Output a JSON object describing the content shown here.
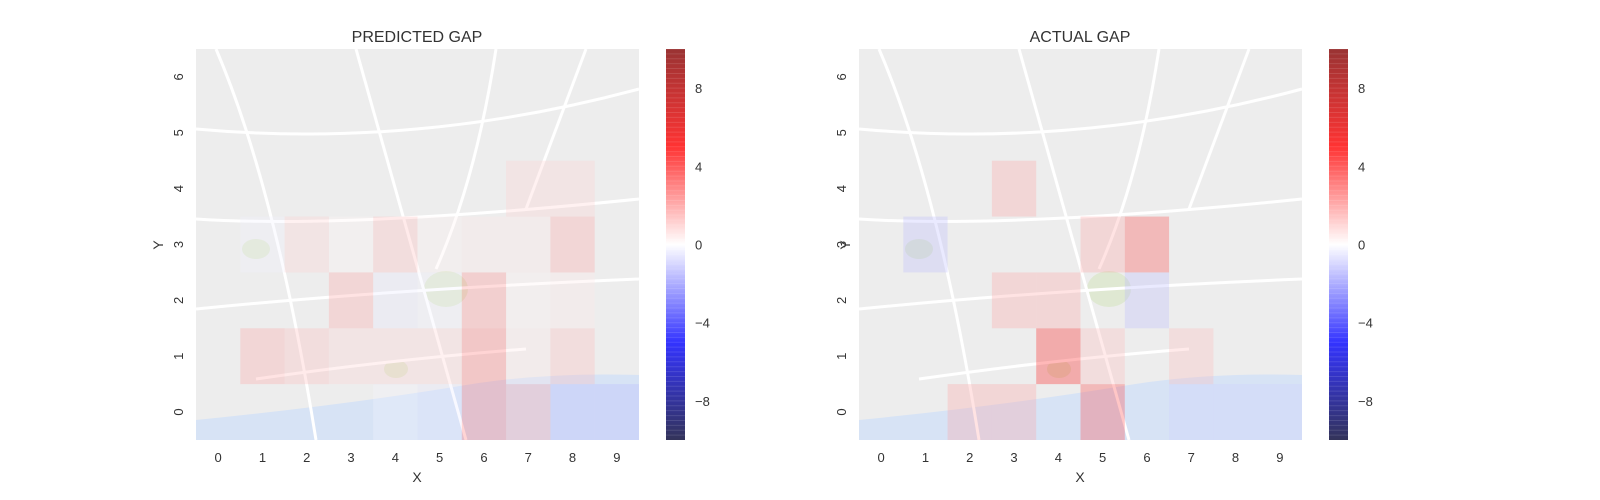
{
  "chart_data": [
    {
      "type": "heatmap",
      "title": "PREDICTED GAP",
      "xlabel": "X",
      "ylabel": "Y",
      "x": [
        0,
        1,
        2,
        3,
        4,
        5,
        6,
        7,
        8,
        9
      ],
      "y": [
        0,
        1,
        2,
        3,
        4,
        5,
        6
      ],
      "x_tick_labels": [
        "0",
        "1",
        "2",
        "3",
        "4",
        "5",
        "6",
        "7",
        "8",
        "9"
      ],
      "y_tick_labels": [
        "0",
        "1",
        "2",
        "3",
        "4",
        "5",
        "6"
      ],
      "values": [
        [
          0,
          0,
          0,
          0,
          -0.2,
          -0.5,
          3,
          2,
          -1.5,
          -1.5
        ],
        [
          0,
          2,
          1.5,
          1,
          1,
          1,
          3,
          0.5,
          1.5,
          0
        ],
        [
          0,
          0,
          0,
          2,
          -0.5,
          -0.3,
          2.5,
          0.3,
          0.5,
          0
        ],
        [
          0,
          -0.3,
          1,
          0.2,
          1.5,
          0.3,
          0.5,
          0.5,
          2,
          0
        ],
        [
          0,
          0,
          0,
          0,
          0,
          0,
          0,
          1,
          1,
          0
        ],
        [
          0,
          0,
          0,
          0,
          0,
          0,
          0,
          0,
          0,
          0
        ],
        [
          0,
          0,
          0,
          0,
          0,
          0,
          0,
          0,
          0,
          0
        ]
      ],
      "colorbar": {
        "cmap": "seismic",
        "vmin": -10,
        "vmax": 10,
        "ticks": [
          -8,
          -4,
          0,
          4,
          8
        ],
        "tick_labels": [
          "−8",
          "−4",
          "0",
          "4",
          "8"
        ]
      },
      "background": "street-map"
    },
    {
      "type": "heatmap",
      "title": "ACTUAL GAP",
      "xlabel": "X",
      "ylabel": "Y",
      "x": [
        0,
        1,
        2,
        3,
        4,
        5,
        6,
        7,
        8,
        9
      ],
      "y": [
        0,
        1,
        2,
        3,
        4,
        5,
        6
      ],
      "x_tick_labels": [
        "0",
        "1",
        "2",
        "3",
        "4",
        "5",
        "6",
        "7",
        "8",
        "9"
      ],
      "y_tick_labels": [
        "0",
        "1",
        "2",
        "3",
        "4",
        "5",
        "6"
      ],
      "values": [
        [
          0,
          0,
          2,
          2,
          0,
          4,
          0,
          -1,
          -1,
          -1
        ],
        [
          0,
          0,
          0,
          0,
          5,
          1.5,
          0,
          1.5,
          0,
          0
        ],
        [
          0,
          0,
          0,
          2,
          2,
          0,
          -1.5,
          0,
          0,
          0
        ],
        [
          0,
          -1.5,
          0,
          0,
          0,
          2,
          4,
          0,
          0,
          0
        ],
        [
          0,
          0,
          0,
          2,
          0,
          0,
          0,
          0,
          0,
          0
        ],
        [
          0,
          0,
          0,
          0,
          0,
          0,
          0,
          0,
          0,
          0
        ],
        [
          0,
          0,
          0,
          0,
          0,
          0,
          0,
          0,
          0,
          0
        ]
      ],
      "colorbar": {
        "cmap": "seismic",
        "vmin": -10,
        "vmax": 10,
        "ticks": [
          -8,
          -4,
          0,
          4,
          8
        ],
        "tick_labels": [
          "−8",
          "−4",
          "0",
          "4",
          "8"
        ]
      },
      "background": "street-map"
    }
  ],
  "colors": {
    "map_bg": "#ededed",
    "map_road": "#ffffff",
    "map_water": "#d7e3f5",
    "map_park": "#dfe8d2"
  }
}
